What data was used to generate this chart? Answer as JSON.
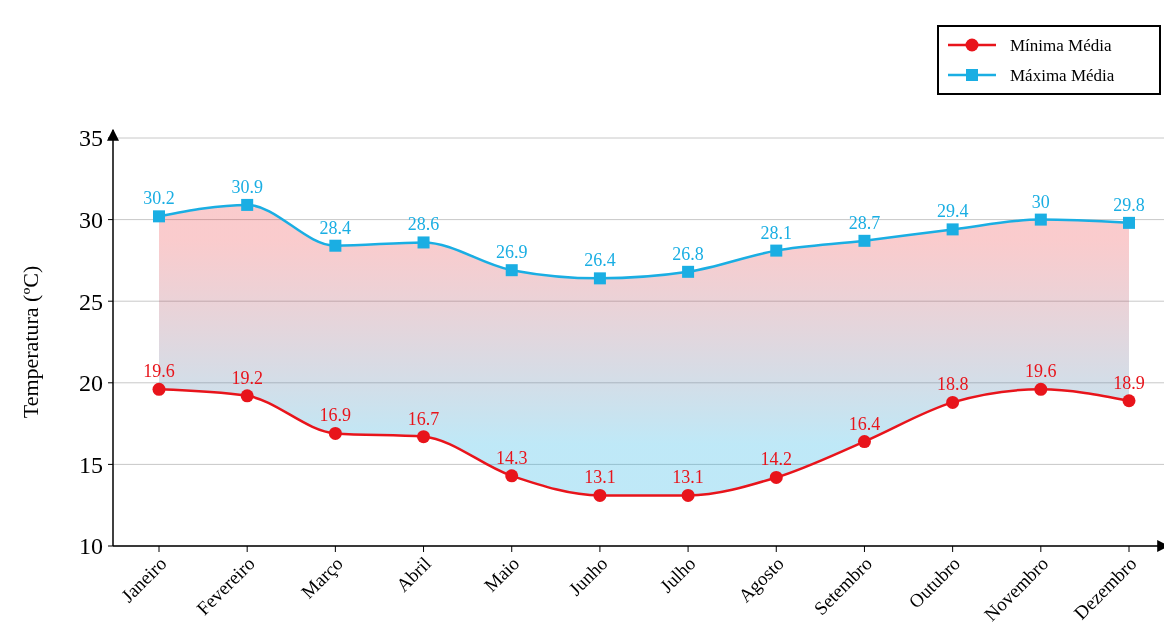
{
  "chart_data": {
    "type": "line",
    "ylabel": "Temperatura (ºC)",
    "categories": [
      "Janeiro",
      "Fevereiro",
      "Março",
      "Abril",
      "Maio",
      "Junho",
      "Julho",
      "Agosto",
      "Setembro",
      "Outubro",
      "Novembro",
      "Dezembro"
    ],
    "series": [
      {
        "name": "Mínima Média",
        "color": "#e8141b",
        "marker": "circle",
        "values": [
          19.6,
          19.2,
          16.9,
          16.7,
          14.3,
          13.1,
          13.1,
          14.2,
          16.4,
          18.8,
          19.6,
          18.9
        ]
      },
      {
        "name": "Máxima Média",
        "color": "#1aaee3",
        "marker": "square",
        "values": [
          30.2,
          30.9,
          28.4,
          28.6,
          26.9,
          26.4,
          26.8,
          28.1,
          28.7,
          29.4,
          30,
          29.8
        ],
        "lower": [
          19.6,
          19.2,
          16.9,
          16.7,
          14.3,
          13.1,
          13.1,
          14.2,
          16.4,
          18.8,
          19.6,
          18.9
        ],
        "upper": [
          30.2,
          30.9,
          28.4,
          28.6,
          26.9,
          26.4,
          26.8,
          28.1,
          28.7,
          29.4,
          30,
          29.8
        ]
      }
    ],
    "ylim": [
      10,
      35
    ],
    "yticks": [
      10,
      15,
      20,
      25,
      30,
      35
    ],
    "grid": "y",
    "legend": "top right",
    "data_labels": true,
    "line_style": "solid"
  }
}
